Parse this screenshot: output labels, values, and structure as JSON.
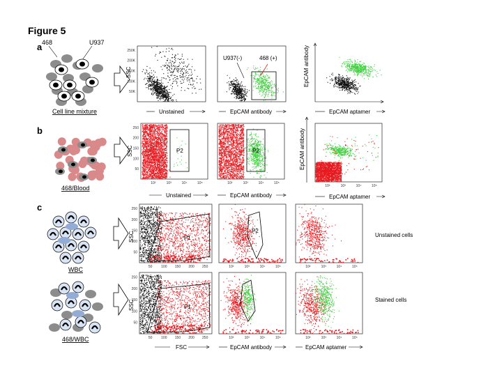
{
  "figure_title": "Figure 5",
  "panels": {
    "a": {
      "letter": "a",
      "cartoon_caption": "Cell line mixture",
      "cartoon_labels": [
        "468",
        "U937"
      ],
      "plot1": {
        "xlabel": "Unstained",
        "ylabel": "SSC"
      },
      "plot2": {
        "xlabel": "EpCAM antibody",
        "annot_neg": "U937(-)",
        "annot_pos": "468 (+)"
      },
      "plot3": {
        "xlabel": "EpCAM aptamer",
        "ylabel": "EpCAM antibody"
      }
    },
    "b": {
      "letter": "b",
      "cartoon_caption": "468/Blood",
      "plot1": {
        "xlabel": "Unstained",
        "ylabel": "SSC",
        "gate": "P2"
      },
      "plot2": {
        "xlabel": "EpCAM antibody",
        "gate": "P2"
      },
      "plot3": {
        "xlabel": "EpCAM aptamer",
        "ylabel": "EpCAM antibody"
      }
    },
    "c": {
      "letter": "c",
      "cartoon_top_caption": "WBC",
      "cartoon_bottom_caption": "468/WBC",
      "row_top_label": "Unstained cells",
      "row_bottom_label": "Stained cells",
      "ylabel": "SSC",
      "gate_p1": "P1",
      "gate_p2": "P2",
      "xlabel_fsc": "FSC",
      "xlabel_ab": "EpCAM antibody",
      "xlabel_apt": "EpCAM aptamer"
    }
  },
  "ticks": {
    "fsc_ticks": [
      "50",
      "100",
      "150",
      "200",
      "250"
    ],
    "ssc_ticks": [
      "50",
      "100",
      "150",
      "200",
      "250"
    ],
    "ssc_ticks_a": [
      "50K",
      "100K",
      "150K",
      "200K",
      "250K"
    ],
    "log_ticks": [
      "10²",
      "10³",
      "10⁴",
      "10⁵"
    ]
  },
  "colors": {
    "red": "#e8191e",
    "green": "#3fcf3f",
    "black": "#111111",
    "cell_grey": "#8c8c8c",
    "blood_pink": "#d9898a",
    "wbc_blue": "#93acd6",
    "wbc_light": "#d8e3f3"
  }
}
